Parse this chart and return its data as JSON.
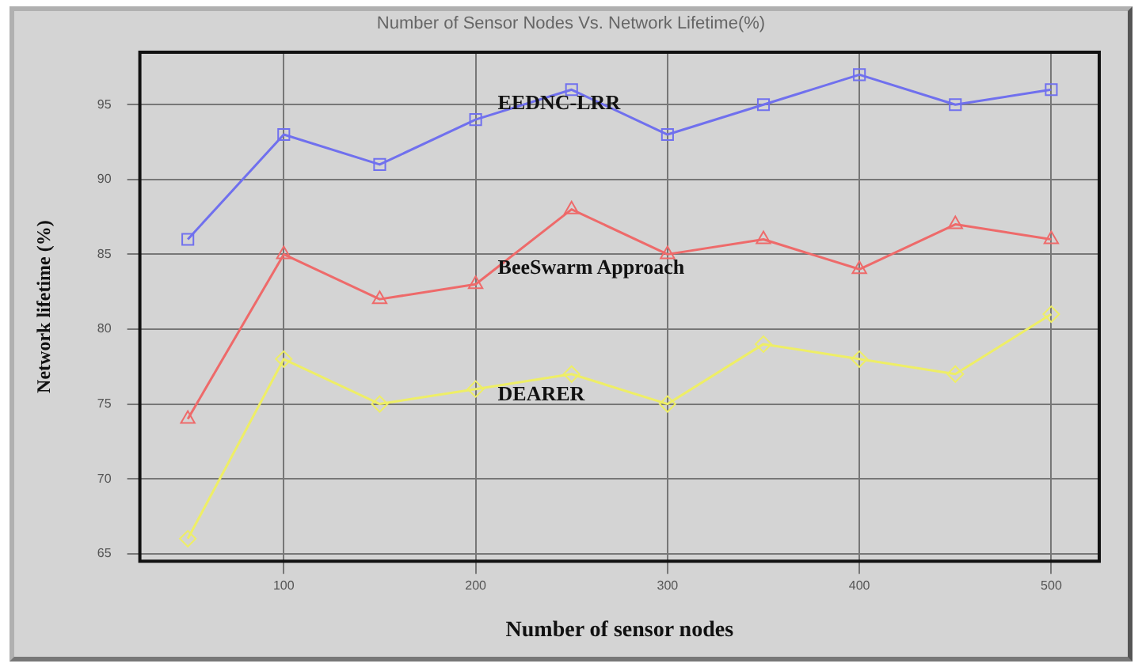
{
  "chart_data": {
    "type": "line",
    "title": "Number of Sensor Nodes Vs. Network Lifetime(%)",
    "xlabel": "Number of sensor nodes",
    "ylabel": "Network lifetime (%)",
    "x": [
      50,
      100,
      150,
      200,
      250,
      300,
      350,
      400,
      450,
      500
    ],
    "series": [
      {
        "name": "EEDNC-LRR",
        "color": "#7070ee",
        "marker": "square",
        "values": [
          86,
          93,
          91,
          94,
          96,
          93,
          95,
          97,
          95,
          96
        ]
      },
      {
        "name": "BeeSwarm Approach",
        "color": "#ee6a6a",
        "marker": "triangle",
        "values": [
          74,
          85,
          82,
          83,
          88,
          85,
          86,
          84,
          87,
          86
        ]
      },
      {
        "name": "DEARER",
        "color": "#eeee66",
        "marker": "diamond",
        "values": [
          66,
          78,
          75,
          76,
          77,
          75,
          79,
          78,
          77,
          81
        ]
      }
    ],
    "xlim": [
      25,
      525
    ],
    "xticks": [
      100,
      200,
      300,
      400,
      500
    ],
    "ylim": [
      64.5,
      98.5
    ],
    "yticks": [
      65,
      70,
      75,
      80,
      85,
      90,
      95
    ],
    "grid": true,
    "legend": false,
    "line_style": "solid"
  }
}
